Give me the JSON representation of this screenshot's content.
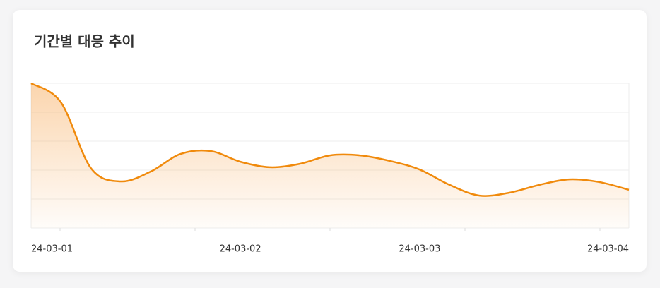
{
  "chart_data": {
    "type": "area",
    "title": "기간별 대응 추이",
    "categories": [
      "24-03-01",
      null,
      null,
      null,
      null,
      null,
      null,
      "24-03-02",
      null,
      null,
      null,
      null,
      null,
      "24-03-03",
      null,
      null,
      null,
      null,
      null,
      null,
      "24-03-04"
    ],
    "series": [
      {
        "color": "#f08a0c",
        "values": [
          5.0,
          4.34,
          2.07,
          1.61,
          1.95,
          2.56,
          2.66,
          2.29,
          2.1,
          2.22,
          2.51,
          2.51,
          2.32,
          2.02,
          1.49,
          1.12,
          1.22,
          1.49,
          1.68,
          1.59,
          1.32
        ]
      }
    ],
    "ylim": [
      0,
      5
    ],
    "yticks": [
      0,
      1,
      2,
      3,
      4,
      5
    ],
    "grid": true,
    "ytick_labels": false
  }
}
